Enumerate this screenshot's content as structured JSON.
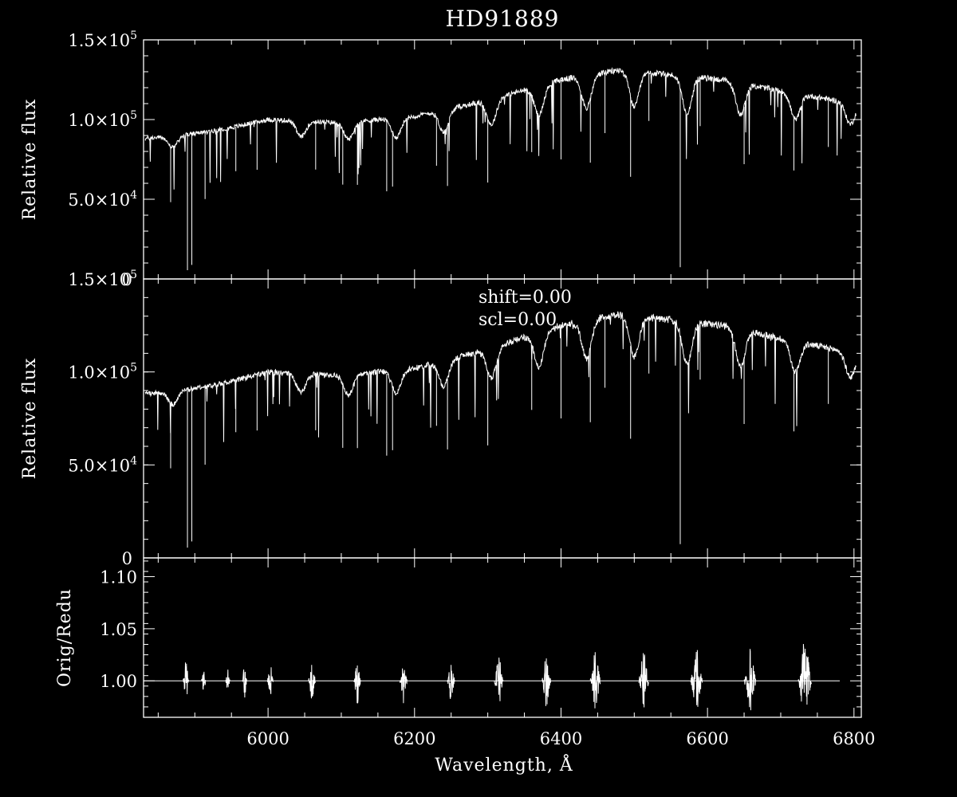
{
  "chart_data": {
    "title": "HD91889",
    "type": "line",
    "xlabel": "Wavelength, Å",
    "xlim": [
      5830,
      6810
    ],
    "x_ticks": [
      6000,
      6200,
      6400,
      6600,
      6800
    ],
    "x_tick_labels": [
      "6000",
      "6200",
      "6400",
      "6600",
      "6800"
    ],
    "panels": [
      {
        "id": "original",
        "ylabel": "Relative flux",
        "ylim": [
          0,
          150000
        ],
        "y_ticks": [
          0,
          50000,
          100000,
          150000
        ],
        "y_tick_mantissa": [
          "0",
          "5.0×10",
          "1.0×10",
          "1.5×10"
        ],
        "y_tick_exponent": [
          "",
          "4",
          "5",
          "5"
        ],
        "series": [
          {
            "continuum": [
              [
                5830,
                88000
              ],
              [
                5900,
                91000
              ],
              [
                5950,
                95000
              ],
              [
                6000,
                100000
              ],
              [
                6100,
                98000
              ],
              [
                6200,
                102000
              ],
              [
                6300,
                112000
              ],
              [
                6400,
                125000
              ],
              [
                6480,
                131000
              ],
              [
                6550,
                128000
              ],
              [
                6620,
                125000
              ],
              [
                6700,
                118000
              ],
              [
                6800,
                110000
              ]
            ],
            "bands": [
              [
                5870,
                6000,
                0.08
              ],
              [
                6045,
                6000,
                0.1
              ],
              [
                6110,
                6000,
                0.11
              ],
              [
                6175,
                6000,
                0.12
              ],
              [
                6240,
                6000,
                0.13
              ],
              [
                6305,
                6000,
                0.14
              ],
              [
                6370,
                6000,
                0.15
              ],
              [
                6435,
                6000,
                0.16
              ],
              [
                6500,
                6000,
                0.17
              ],
              [
                6572,
                6000,
                0.18
              ],
              [
                6645,
                6000,
                0.16
              ],
              [
                6720,
                6000,
                0.14
              ],
              [
                6795,
                6000,
                0.12
              ]
            ],
            "absorption_lines": [
              [
                5889.95,
                85000
              ],
              [
                5895.92,
                82000
              ],
              [
                6562.8,
                112000
              ],
              [
                5867,
                35000
              ],
              [
                5914,
                42000
              ],
              [
                5956,
                28000
              ],
              [
                5985,
                30000
              ],
              [
                6065,
                30000
              ],
              [
                6102,
                34000
              ],
              [
                6122,
                38000
              ],
              [
                6162,
                44000
              ],
              [
                6170,
                34000
              ],
              [
                6230,
                30000
              ],
              [
                6245,
                38000
              ],
              [
                6300,
                40000
              ],
              [
                6360,
                35000
              ],
              [
                6400,
                50000
              ],
              [
                6440,
                40000
              ],
              [
                6460,
                38000
              ],
              [
                6495,
                50000
              ],
              [
                6520,
                30000
              ],
              [
                6590,
                30000
              ],
              [
                6650,
                36000
              ],
              [
                6718,
                33000
              ],
              [
                6765,
                30000
              ]
            ]
          }
        ]
      },
      {
        "id": "reduced",
        "ylabel": "Relative flux",
        "ylim": [
          0,
          150000
        ],
        "y_ticks": [
          0,
          50000,
          100000,
          150000
        ],
        "y_tick_mantissa": [
          "0",
          "5.0×10",
          "1.0×10",
          "1.5×10"
        ],
        "y_tick_exponent": [
          "",
          "4",
          "5",
          "5"
        ],
        "annotations": [
          "shift=0.00",
          "scl=0.00"
        ]
      },
      {
        "id": "ratio",
        "ylabel": "Orig/Redu",
        "ylim": [
          0.965,
          1.118
        ],
        "y_ticks": [
          1.0,
          1.05,
          1.1
        ],
        "y_tick_labels": [
          "1.00",
          "1.05",
          "1.10"
        ],
        "baseline": 1.0,
        "bursts": [
          [
            5888,
            0.02,
            4
          ],
          [
            5912,
            0.015,
            3
          ],
          [
            5945,
            0.012,
            3
          ],
          [
            5968,
            0.02,
            3
          ],
          [
            6003,
            0.018,
            4
          ],
          [
            6060,
            0.02,
            5
          ],
          [
            6122,
            0.022,
            5
          ],
          [
            6185,
            0.022,
            5
          ],
          [
            6250,
            0.022,
            5
          ],
          [
            6315,
            0.025,
            6
          ],
          [
            6380,
            0.028,
            6
          ],
          [
            6447,
            0.03,
            7
          ],
          [
            6513,
            0.03,
            7
          ],
          [
            6585,
            0.035,
            8
          ],
          [
            6658,
            0.04,
            8
          ],
          [
            6733,
            0.045,
            9
          ]
        ]
      }
    ]
  }
}
